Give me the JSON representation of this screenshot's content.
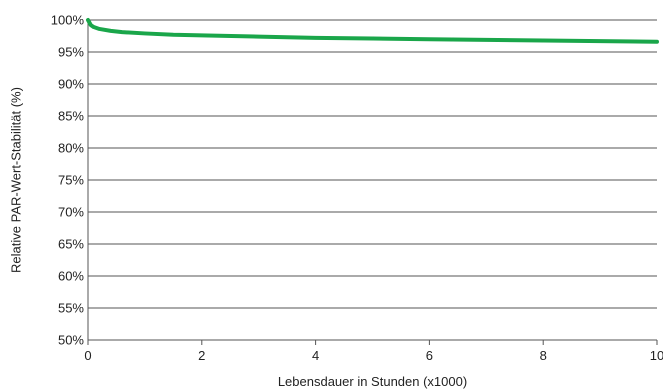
{
  "chart_data": {
    "type": "line",
    "title": "",
    "xlabel": "Lebensdauer in Stunden (x1000)",
    "ylabel": "Relative PAR-Wert-Stabilität (%)",
    "xlim": [
      0,
      10
    ],
    "ylim": [
      50,
      100
    ],
    "x_ticks": [
      0,
      2,
      4,
      6,
      8,
      10
    ],
    "x_tick_labels": [
      "0",
      "2",
      "4",
      "6",
      "8",
      "10"
    ],
    "y_ticks": [
      50,
      55,
      60,
      65,
      70,
      75,
      80,
      85,
      90,
      95,
      100
    ],
    "y_tick_labels": [
      "50%",
      "55%",
      "60%",
      "65%",
      "70%",
      "75%",
      "80%",
      "85%",
      "90%",
      "95%",
      "100%"
    ],
    "grid": "horizontal",
    "legend": "none",
    "series": [
      {
        "color": "#1aa64a",
        "x": [
          0,
          0.05,
          0.1,
          0.2,
          0.4,
          0.6,
          1,
          1.5,
          2,
          3,
          4,
          5,
          6,
          7,
          8,
          9,
          10
        ],
        "y": [
          100,
          99.2,
          98.9,
          98.6,
          98.3,
          98.1,
          97.9,
          97.7,
          97.6,
          97.4,
          97.2,
          97.1,
          97.0,
          96.9,
          96.8,
          96.7,
          96.6
        ]
      }
    ]
  }
}
